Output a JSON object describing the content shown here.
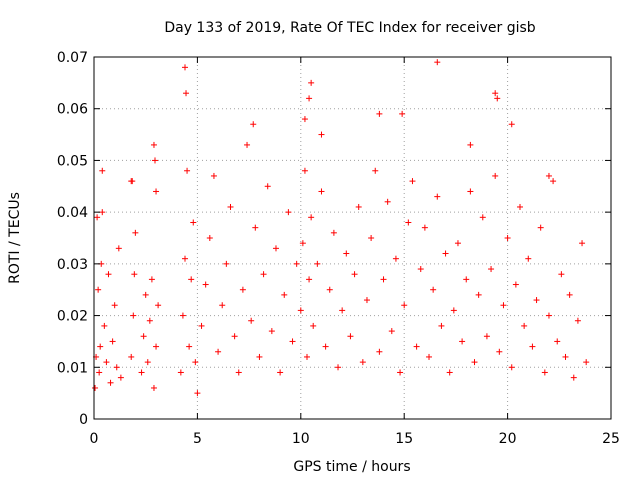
{
  "chart_data": {
    "type": "scatter",
    "title": "Day 133 of 2019, Rate Of TEC Index for receiver gisb",
    "xlabel": "GPS time / hours",
    "ylabel": "ROTI / TECUs",
    "xlim": [
      0,
      25
    ],
    "ylim": [
      0,
      0.07
    ],
    "x_ticks": [
      0,
      5,
      10,
      15,
      20,
      25
    ],
    "x_tick_labels": [
      "0",
      "5",
      "10",
      "15",
      "20",
      "25"
    ],
    "y_ticks": [
      0,
      0.01,
      0.02,
      0.03,
      0.04,
      0.05,
      0.06,
      0.07
    ],
    "y_tick_labels": [
      "0",
      "0.01",
      "0.02",
      "0.03",
      "0.04",
      "0.05",
      "0.06",
      "0.07"
    ],
    "grid": true,
    "marker": "plus",
    "color": "#ff0000",
    "series": [
      {
        "name": "ROTI",
        "x": [
          0.05,
          0.1,
          0.15,
          0.2,
          0.25,
          0.3,
          0.35,
          0.4,
          0.5,
          0.6,
          0.7,
          0.8,
          0.9,
          1.0,
          1.1,
          1.2,
          1.3,
          1.8,
          1.85,
          1.9,
          1.95,
          2.0,
          2.3,
          2.4,
          2.5,
          2.6,
          2.7,
          2.8,
          2.9,
          3.0,
          3.1,
          4.2,
          4.3,
          4.4,
          4.5,
          4.6,
          4.7,
          4.8,
          4.9,
          5.0,
          5.2,
          5.4,
          5.6,
          5.8,
          6.0,
          6.2,
          6.4,
          6.6,
          6.8,
          7.0,
          7.2,
          7.4,
          7.6,
          7.8,
          8.0,
          8.2,
          8.4,
          8.6,
          8.8,
          9.0,
          9.2,
          9.4,
          9.6,
          9.8,
          10.0,
          10.1,
          10.2,
          10.3,
          10.4,
          10.5,
          10.6,
          10.8,
          11.0,
          11.2,
          11.4,
          11.6,
          11.8,
          12.0,
          12.2,
          12.4,
          12.6,
          12.8,
          13.0,
          13.2,
          13.4,
          13.6,
          13.8,
          14.0,
          14.2,
          14.4,
          14.6,
          14.8,
          15.0,
          15.2,
          15.4,
          15.6,
          15.8,
          16.0,
          16.2,
          16.4,
          16.6,
          16.8,
          17.0,
          17.2,
          17.4,
          17.6,
          17.8,
          18.0,
          18.2,
          18.4,
          18.6,
          18.8,
          19.0,
          19.2,
          19.4,
          19.6,
          19.8,
          20.0,
          20.2,
          20.4,
          20.6,
          20.8,
          21.0,
          21.2,
          21.4,
          21.6,
          21.8,
          22.0,
          22.2,
          22.4,
          22.6,
          22.8,
          23.0,
          23.2,
          23.4,
          23.6,
          23.8,
          4.4,
          4.45,
          10.4,
          10.5,
          10.2,
          16.6,
          19.4,
          19.5,
          13.8,
          14.9,
          20.2,
          7.7,
          2.9,
          2.95,
          18.2,
          11.0,
          22.0,
          0.4,
          1.8,
          3.0
        ],
        "y": [
          0.006,
          0.012,
          0.039,
          0.025,
          0.009,
          0.014,
          0.03,
          0.048,
          0.018,
          0.011,
          0.028,
          0.007,
          0.015,
          0.022,
          0.01,
          0.033,
          0.008,
          0.012,
          0.046,
          0.02,
          0.028,
          0.036,
          0.009,
          0.016,
          0.024,
          0.011,
          0.019,
          0.027,
          0.006,
          0.014,
          0.022,
          0.009,
          0.02,
          0.031,
          0.048,
          0.014,
          0.027,
          0.038,
          0.011,
          0.005,
          0.018,
          0.026,
          0.035,
          0.047,
          0.013,
          0.022,
          0.03,
          0.041,
          0.016,
          0.009,
          0.025,
          0.053,
          0.019,
          0.037,
          0.012,
          0.028,
          0.045,
          0.017,
          0.033,
          0.009,
          0.024,
          0.04,
          0.015,
          0.03,
          0.021,
          0.034,
          0.048,
          0.012,
          0.027,
          0.039,
          0.018,
          0.03,
          0.044,
          0.014,
          0.025,
          0.036,
          0.01,
          0.021,
          0.032,
          0.016,
          0.028,
          0.041,
          0.011,
          0.023,
          0.035,
          0.048,
          0.013,
          0.027,
          0.042,
          0.017,
          0.031,
          0.009,
          0.022,
          0.038,
          0.046,
          0.014,
          0.029,
          0.037,
          0.012,
          0.025,
          0.043,
          0.018,
          0.032,
          0.009,
          0.021,
          0.034,
          0.015,
          0.027,
          0.044,
          0.011,
          0.024,
          0.039,
          0.016,
          0.029,
          0.047,
          0.013,
          0.022,
          0.035,
          0.01,
          0.026,
          0.041,
          0.018,
          0.031,
          0.014,
          0.023,
          0.037,
          0.009,
          0.02,
          0.046,
          0.015,
          0.028,
          0.012,
          0.024,
          0.008,
          0.019,
          0.034,
          0.011,
          0.068,
          0.063,
          0.062,
          0.065,
          0.058,
          0.069,
          0.063,
          0.062,
          0.059,
          0.059,
          0.057,
          0.057,
          0.053,
          0.05,
          0.053,
          0.055,
          0.047,
          0.04,
          0.046,
          0.044
        ]
      }
    ]
  }
}
